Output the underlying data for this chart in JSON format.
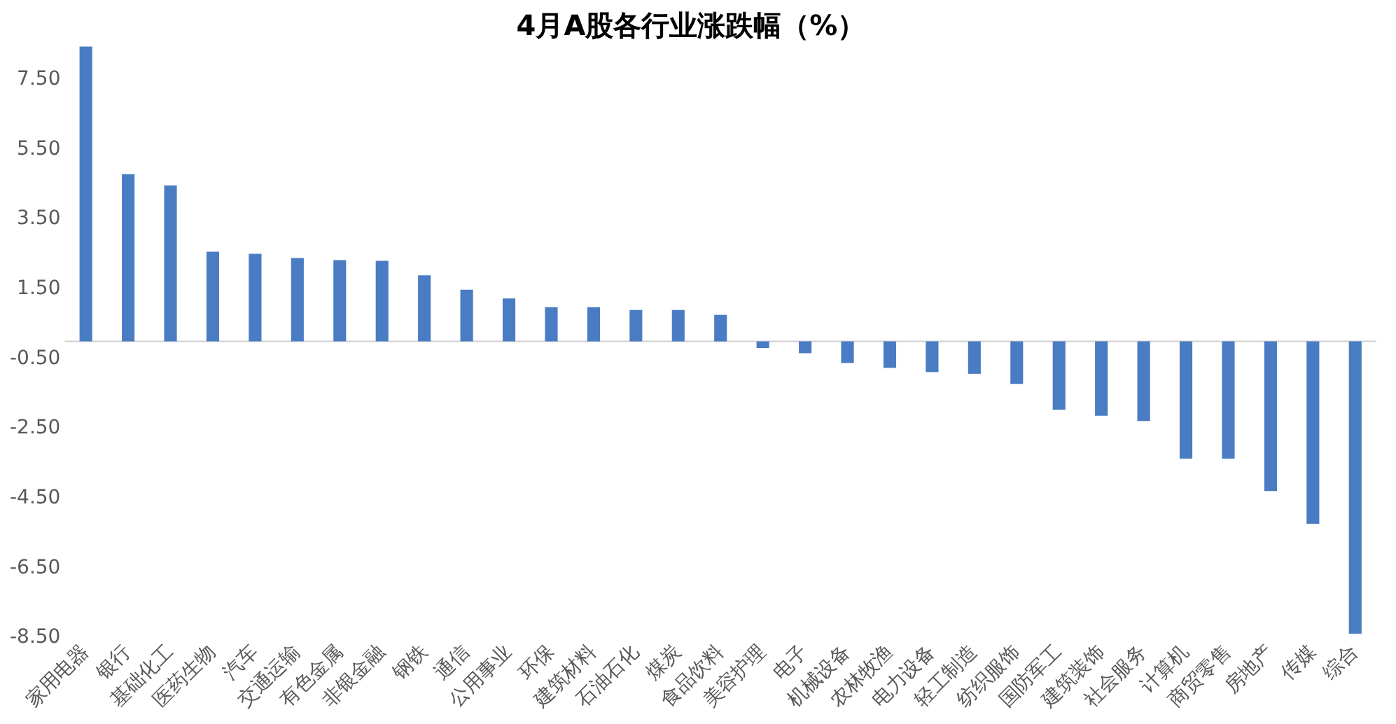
{
  "chart_data": {
    "type": "bar",
    "title": "4月A股各行业涨跌幅（%）",
    "categories": [
      "家用电器",
      "银行",
      "基础化工",
      "医药生物",
      "汽车",
      "交通运输",
      "有色金属",
      "非银金融",
      "钢铁",
      "通信",
      "公用事业",
      "环保",
      "建筑材料",
      "石油石化",
      "煤炭",
      "食品饮料",
      "美容护理",
      "电子",
      "机械设备",
      "农林牧渔",
      "电力设备",
      "轻工制造",
      "纺织服饰",
      "国防军工",
      "建筑装饰",
      "社会服务",
      "计算机",
      "商贸零售",
      "房地产",
      "传媒",
      "综合"
    ],
    "values": [
      8.45,
      4.79,
      4.47,
      2.57,
      2.51,
      2.39,
      2.33,
      2.31,
      1.89,
      1.48,
      1.23,
      0.98,
      0.98,
      0.9,
      0.9,
      0.76,
      -0.19,
      -0.34,
      -0.62,
      -0.76,
      -0.88,
      -0.93,
      -1.22,
      -1.96,
      -2.13,
      -2.28,
      -3.36,
      -3.36,
      -4.29,
      -5.23,
      -8.38
    ],
    "color": "#4a7cc4",
    "ylim": [
      -8.5,
      8.5
    ],
    "yticks": [
      {
        "value": -8.5,
        "label": "-8.50"
      },
      {
        "value": -6.5,
        "label": "-6.50"
      },
      {
        "value": -4.5,
        "label": "-4.50"
      },
      {
        "value": -2.5,
        "label": "-2.50"
      },
      {
        "value": -0.5,
        "label": "-0.50"
      },
      {
        "value": 1.5,
        "label": "1.50"
      },
      {
        "value": 3.5,
        "label": "3.50"
      },
      {
        "value": 5.5,
        "label": "5.50"
      },
      {
        "value": 7.5,
        "label": "7.50"
      }
    ],
    "grid": false,
    "legend": false
  }
}
